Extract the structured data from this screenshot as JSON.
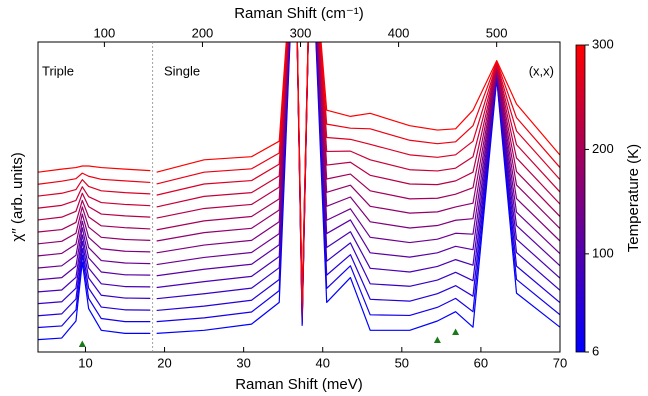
{
  "chart_data": {
    "type": "line",
    "x_label": "Raman Shift (meV)",
    "x2_label": "Raman Shift (cm⁻¹)",
    "y_label": "χ′′ (arb. units)",
    "xlim": [
      4,
      70
    ],
    "xticks": [
      10,
      20,
      30,
      40,
      50,
      60,
      70
    ],
    "x2lim": [
      32.3,
      564.6
    ],
    "x2ticks": [
      100,
      200,
      300,
      400,
      500
    ],
    "ylim": [
      0,
      100
    ],
    "annotations": [
      "Triple",
      "Single",
      "(x,x)"
    ],
    "divider_x": 18.5,
    "markers": {
      "x": [
        9.6,
        54.5,
        56.8
      ],
      "color": "#1a7a1a"
    },
    "colorbar": {
      "label": "Temperature (K)",
      "lim": [
        6,
        300
      ],
      "ticks": [
        6,
        100,
        200,
        300
      ],
      "colors": [
        "#0000ff",
        "#ff0000"
      ]
    },
    "x": [
      4,
      7,
      8.8,
      9.6,
      10.4,
      12,
      15,
      18.2,
      18.5,
      19,
      25,
      31,
      34.5,
      36.5,
      37.4,
      38.5,
      40.5,
      43.5,
      46,
      51,
      54.5,
      56.8,
      59,
      62,
      64.5,
      70
    ],
    "series": [
      {
        "color": "#0000ff",
        "values": [
          4,
          4.5,
          10,
          29,
          14,
          7,
          6,
          6,
          null,
          6,
          7,
          9,
          16,
          140,
          8.6,
          140,
          16,
          24,
          7,
          7,
          10,
          13,
          8,
          88,
          19,
          8
        ]
      },
      {
        "color": "#1200ed",
        "values": [
          7.9,
          8.4,
          13.6,
          31.3,
          17.3,
          10.8,
          9.8,
          9.8,
          null,
          9.8,
          11.0,
          12.9,
          19.8,
          140,
          9.2,
          140,
          20.5,
          27.8,
          12.0,
          11.8,
          14.4,
          17.3,
          13.0,
          88.4,
          23.4,
          12.0
        ]
      },
      {
        "color": "#2400db",
        "values": [
          11.7,
          12.3,
          17.1,
          33.4,
          20.6,
          14.5,
          13.6,
          13.5,
          null,
          13.4,
          14.8,
          16.7,
          23.4,
          140,
          9.8,
          140,
          24.8,
          31.4,
          17.0,
          16.4,
          18.8,
          21.4,
          18.0,
          88.9,
          27.7,
          15.9
        ]
      },
      {
        "color": "#3700c8",
        "values": [
          15.6,
          16.2,
          20.6,
          35.7,
          23.9,
          18.3,
          17.4,
          17.3,
          null,
          17.2,
          18.8,
          20.6,
          27.2,
          140,
          10.3,
          140,
          29.3,
          35.2,
          22.0,
          21.2,
          23.2,
          25.7,
          23.0,
          89.3,
          32.1,
          19.9
        ]
      },
      {
        "color": "#4900b6",
        "values": [
          19.4,
          20.0,
          24.1,
          37.8,
          27.1,
          22.0,
          21.1,
          21.0,
          null,
          20.8,
          22.7,
          24.4,
          30.8,
          140,
          10.9,
          140,
          33.7,
          38.8,
          27.0,
          25.8,
          27.6,
          29.8,
          28.0,
          89.7,
          36.4,
          23.8
        ]
      },
      {
        "color": "#5b00a4",
        "values": [
          23.3,
          24.0,
          27.7,
          40.1,
          30.4,
          25.8,
          24.9,
          24.8,
          null,
          24.6,
          26.7,
          28.3,
          34.6,
          140,
          11.5,
          140,
          38.2,
          42.6,
          32.0,
          30.6,
          32.0,
          34.1,
          33.0,
          90.1,
          40.8,
          27.8
        ]
      },
      {
        "color": "#6d0092",
        "values": [
          27.1,
          27.8,
          31.2,
          42.2,
          33.7,
          29.5,
          28.7,
          28.5,
          null,
          28.2,
          30.5,
          32.1,
          38.2,
          140,
          12.1,
          140,
          42.5,
          46.2,
          37.0,
          35.3,
          36.4,
          38.3,
          38.0,
          90.6,
          45.1,
          31.7
        ]
      },
      {
        "color": "#80007f",
        "values": [
          31,
          31.8,
          34.8,
          44.5,
          37,
          33.3,
          32.5,
          32.3,
          null,
          32,
          34.5,
          36,
          42,
          140,
          12.7,
          140,
          47,
          50,
          42,
          40,
          40.8,
          42.5,
          43,
          91,
          49.5,
          35.8
        ]
      },
      {
        "color": "#92006d",
        "values": [
          34.9,
          35.7,
          38.3,
          46.8,
          40.3,
          37.0,
          36.3,
          36.0,
          null,
          35.8,
          38.5,
          39.9,
          45.8,
          140,
          13.2,
          140,
          51.5,
          53.8,
          47.0,
          44.8,
          45.2,
          46.8,
          48.0,
          91.4,
          53.9,
          39.8
        ]
      },
      {
        "color": "#a4005b",
        "values": [
          38.7,
          39.5,
          41.8,
          48.9,
          43.6,
          40.7,
          40.1,
          39.7,
          null,
          39.4,
          42.3,
          43.7,
          49.4,
          140,
          13.8,
          140,
          55.8,
          57.4,
          52.0,
          49.4,
          49.6,
          50.9,
          53.0,
          91.9,
          58.2,
          43.7
        ]
      },
      {
        "color": "#b60049",
        "values": [
          42.6,
          43.5,
          45.4,
          51.2,
          46.9,
          44.5,
          43.9,
          43.5,
          null,
          43.2,
          46.3,
          47.6,
          53.2,
          140,
          14.4,
          140,
          60.3,
          61.2,
          57.0,
          54.2,
          54.0,
          55.2,
          58.0,
          92.3,
          62.6,
          47.7
        ]
      },
      {
        "color": "#c80037",
        "values": [
          46.4,
          47.3,
          48.9,
          53.3,
          50.1,
          48.2,
          47.6,
          47.2,
          null,
          46.8,
          50.2,
          51.4,
          56.8,
          140,
          15.0,
          140,
          64.7,
          64.8,
          62.0,
          58.8,
          58.4,
          59.3,
          63.0,
          92.7,
          66.9,
          51.6
        ]
      },
      {
        "color": "#db0024",
        "values": [
          50.3,
          51.2,
          52.4,
          55.6,
          53.4,
          52.0,
          51.4,
          51.0,
          null,
          50.6,
          54.2,
          55.3,
          60.6,
          140,
          15.5,
          140,
          69.2,
          68.6,
          67.0,
          63.6,
          62.8,
          63.6,
          68.0,
          93.1,
          71.3,
          55.6
        ]
      },
      {
        "color": "#ed0012",
        "values": [
          54.1,
          55.1,
          55.9,
          57.7,
          56.7,
          55.7,
          55.2,
          54.7,
          null,
          54.2,
          58.0,
          59.1,
          64.2,
          140,
          16.1,
          140,
          73.5,
          72.2,
          72.0,
          68.3,
          67.2,
          67.8,
          73.0,
          93.6,
          75.6,
          59.5
        ]
      },
      {
        "color": "#ff0000",
        "values": [
          58,
          59,
          59.5,
          60,
          60,
          59.5,
          59,
          58.5,
          null,
          58,
          62,
          63,
          68,
          140,
          16.7,
          140,
          78,
          76,
          77,
          73,
          71.6,
          72,
          78,
          94,
          80,
          63.5
        ]
      }
    ]
  }
}
